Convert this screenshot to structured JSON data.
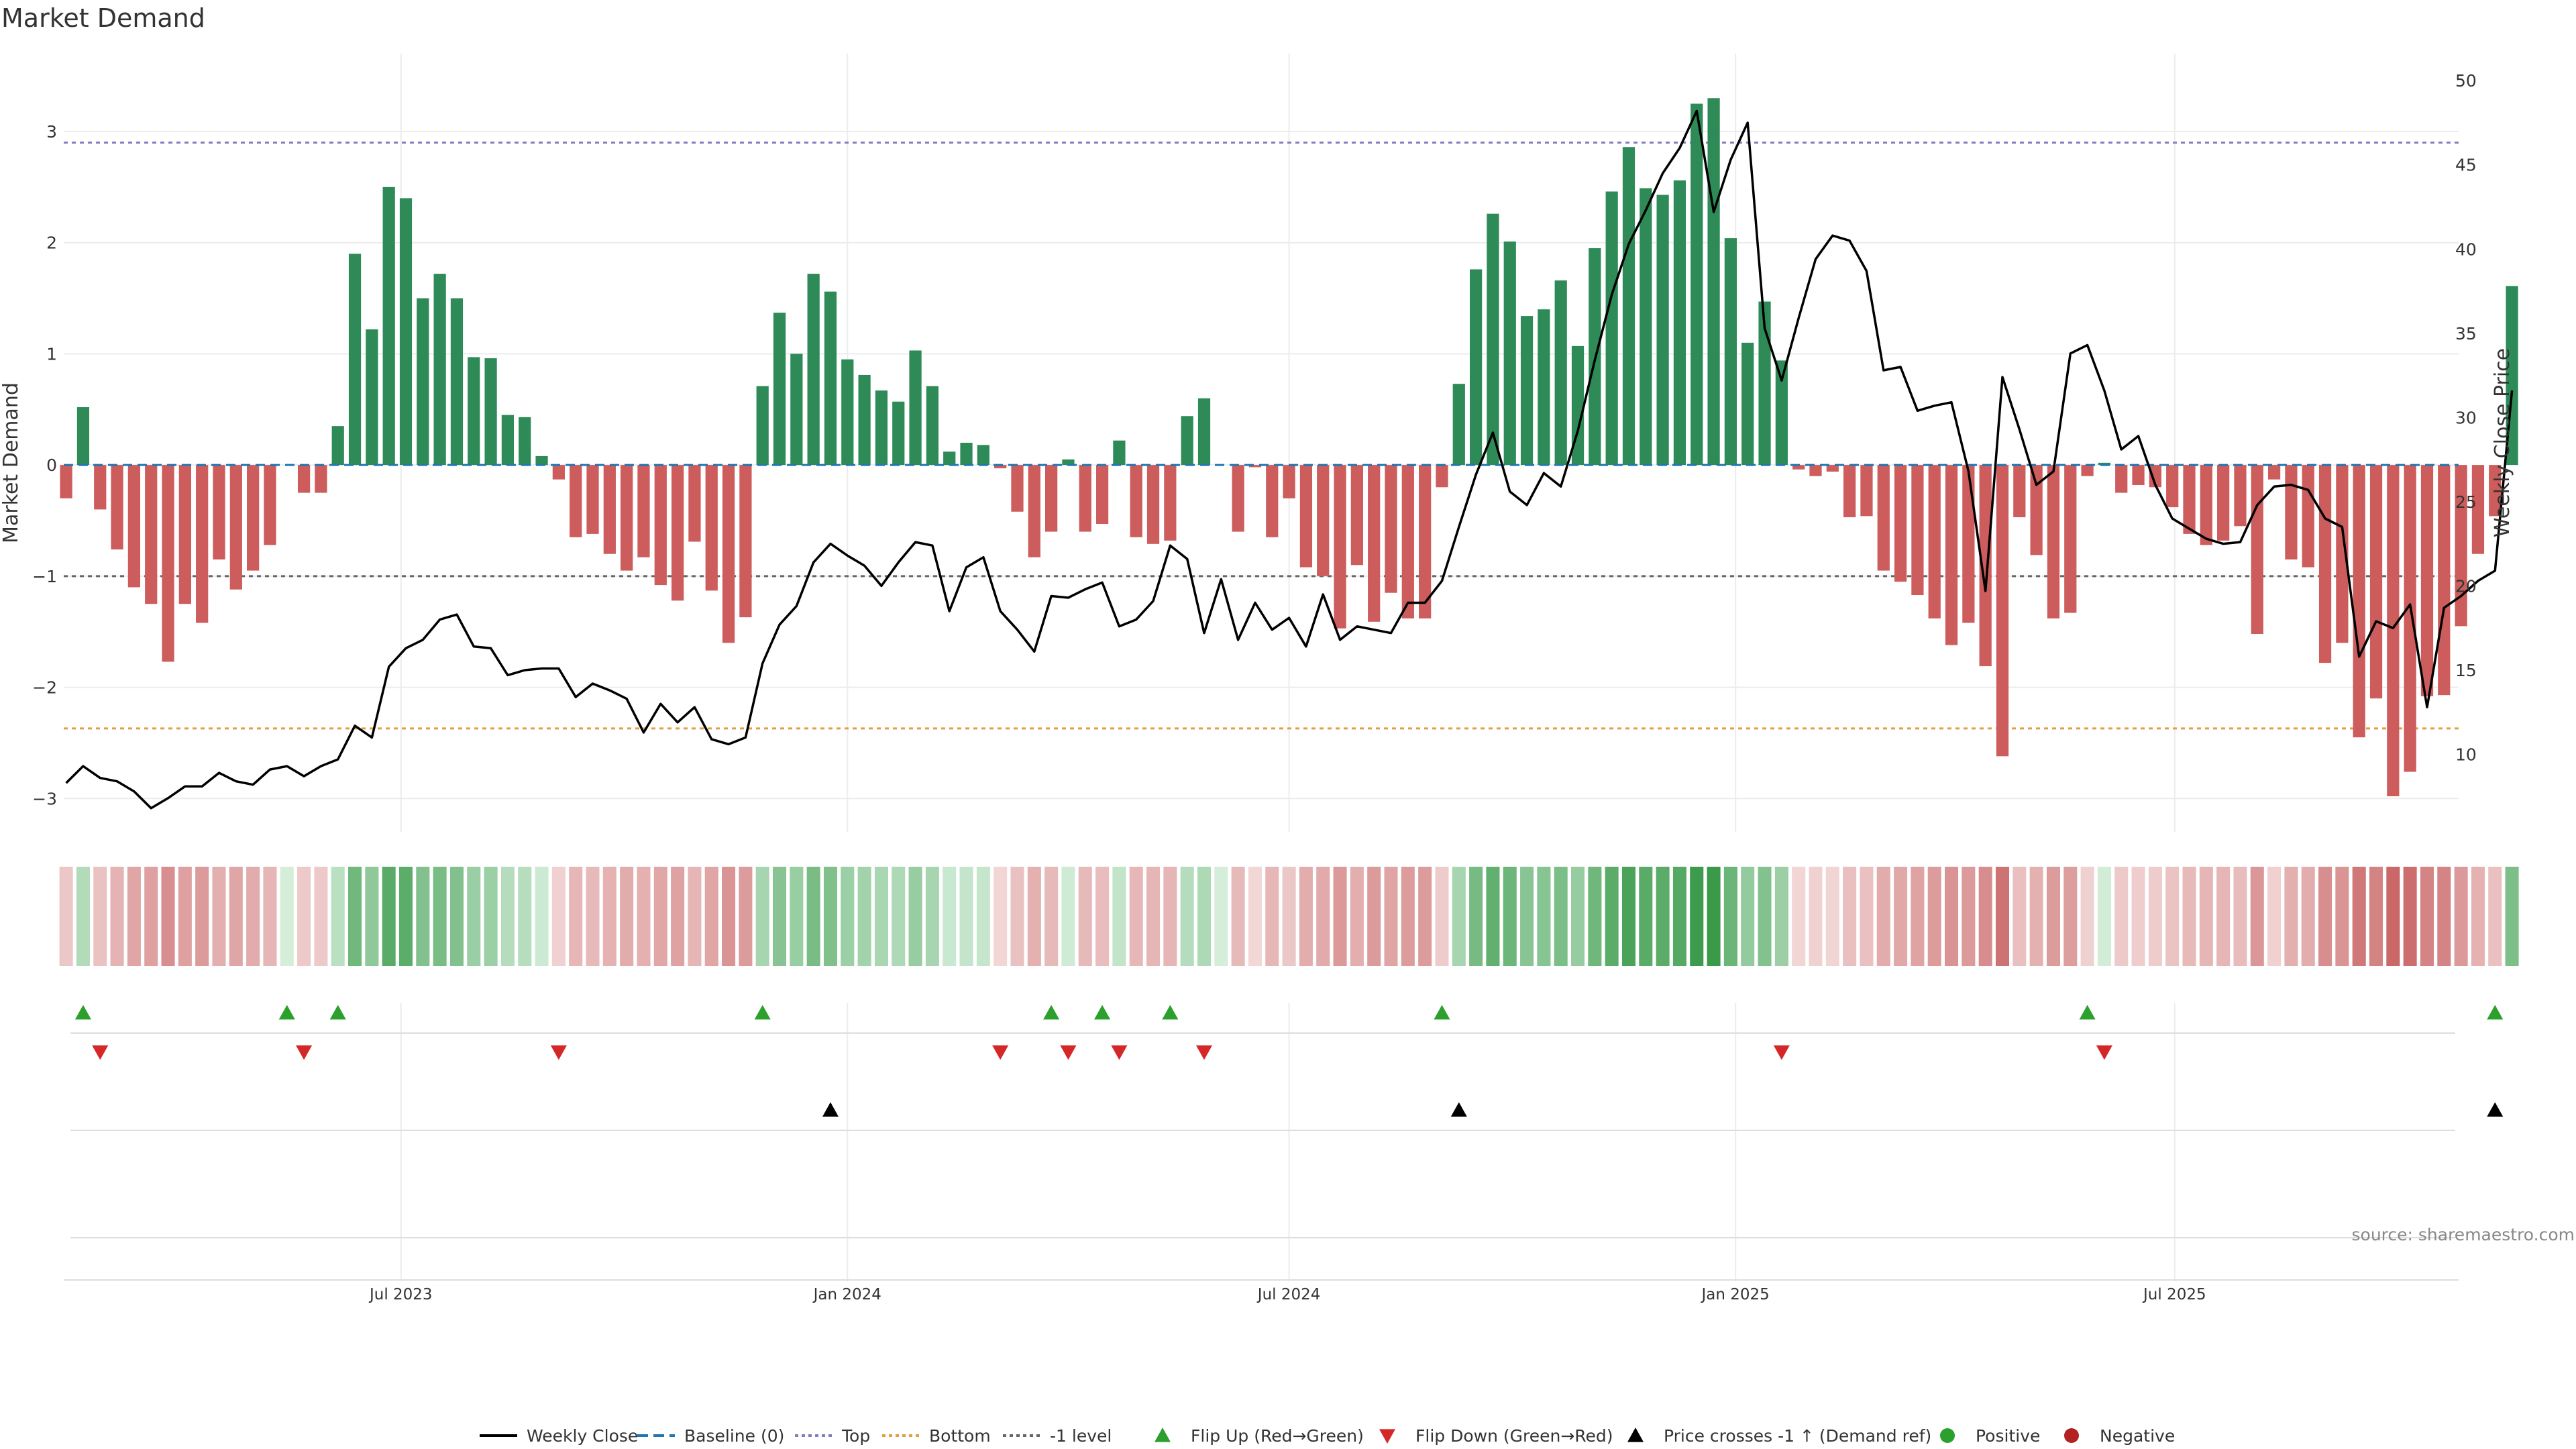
{
  "chart_data": {
    "type": "bar",
    "title": "Market Demand",
    "ylabel_left": "Market Demand",
    "ylabel_right": "Weekly Close Price",
    "source_text": "source: sharemaestro.com",
    "ylim_left": [
      -3.3,
      3.7
    ],
    "yticks_left": [
      {
        "v": 3,
        "label": "3"
      },
      {
        "v": 2,
        "label": "2"
      },
      {
        "v": 1,
        "label": "1"
      },
      {
        "v": 0,
        "label": "0"
      },
      {
        "v": -1,
        "label": "−1"
      },
      {
        "v": -2,
        "label": "−2"
      },
      {
        "v": -3,
        "label": "−3"
      }
    ],
    "ylim_right": [
      5.4,
      51.6
    ],
    "yticks_right": [
      {
        "v": 50,
        "label": "50"
      },
      {
        "v": 45,
        "label": "45"
      },
      {
        "v": 40,
        "label": "40"
      },
      {
        "v": 35,
        "label": "35"
      },
      {
        "v": 30,
        "label": "30"
      },
      {
        "v": 25,
        "label": "25"
      },
      {
        "v": 20,
        "label": "20"
      },
      {
        "v": 15,
        "label": "15"
      },
      {
        "v": 10,
        "label": "10"
      }
    ],
    "x_range": [
      "2023-02-12",
      "2025-10-26"
    ],
    "xticks": [
      {
        "date": "2023-07-01",
        "label": "Jul 2023"
      },
      {
        "date": "2024-01-01",
        "label": "Jan 2024"
      },
      {
        "date": "2024-07-01",
        "label": "Jul 2024"
      },
      {
        "date": "2025-01-01",
        "label": "Jan 2025"
      },
      {
        "date": "2025-07-01",
        "label": "Jul 2025"
      }
    ],
    "start_date": "2023-02-13",
    "reference_lines": {
      "top": 2.9,
      "bottom": -2.37,
      "minus_one": -1,
      "baseline": 0
    },
    "demand": [
      -0.3,
      0.52,
      -0.4,
      -0.76,
      -1.1,
      -1.25,
      -1.77,
      -1.25,
      -1.42,
      -0.85,
      -1.12,
      -0.95,
      -0.72,
      0.0,
      -0.25,
      -0.25,
      0.35,
      1.9,
      1.22,
      2.5,
      2.4,
      1.5,
      1.72,
      1.5,
      0.97,
      0.96,
      0.45,
      0.43,
      0.08,
      -0.13,
      -0.65,
      -0.62,
      -0.8,
      -0.95,
      -0.83,
      -1.08,
      -1.22,
      -0.69,
      -1.13,
      -1.6,
      -1.37,
      0.71,
      1.37,
      1.0,
      1.72,
      1.56,
      0.95,
      0.81,
      0.67,
      0.57,
      1.03,
      0.71,
      0.12,
      0.2,
      0.18,
      -0.03,
      -0.42,
      -0.83,
      -0.6,
      0.05,
      -0.6,
      -0.53,
      0.22,
      -0.65,
      -0.71,
      -0.68,
      0.44,
      0.6,
      0.0,
      -0.6,
      -0.02,
      -0.65,
      -0.3,
      -0.92,
      -1.0,
      -1.47,
      -0.9,
      -1.41,
      -1.15,
      -1.38,
      -1.38,
      -0.2,
      0.73,
      1.76,
      2.26,
      2.01,
      1.34,
      1.4,
      1.66,
      1.07,
      1.95,
      2.46,
      2.86,
      2.49,
      2.43,
      2.56,
      3.25,
      3.3,
      2.04,
      1.1,
      1.47,
      0.94,
      -0.04,
      -0.1,
      -0.06,
      -0.47,
      -0.46,
      -0.95,
      -1.05,
      -1.17,
      -1.38,
      -1.62,
      -1.42,
      -1.81,
      -2.62,
      -0.47,
      -0.81,
      -1.38,
      -1.33,
      -0.1,
      0.02,
      -0.25,
      -0.18,
      -0.2,
      -0.38,
      -0.62,
      -0.72,
      -0.68,
      -0.55,
      -1.52,
      -0.13,
      -0.85,
      -0.92,
      -1.78,
      -1.6,
      -2.45,
      -2.1,
      -2.98,
      -2.76,
      -2.08,
      -2.07,
      -1.45,
      -0.8,
      -0.46,
      1.61
    ],
    "weekly_close": [
      8.3,
      9.3,
      8.6,
      8.4,
      7.8,
      6.8,
      7.4,
      8.1,
      8.1,
      8.9,
      8.4,
      8.2,
      9.1,
      9.3,
      8.7,
      9.3,
      9.7,
      11.7,
      11.0,
      15.2,
      16.3,
      16.8,
      18.0,
      18.3,
      16.4,
      16.3,
      14.7,
      15.0,
      15.1,
      15.1,
      13.4,
      14.2,
      13.8,
      13.3,
      11.3,
      13.0,
      11.9,
      12.8,
      10.9,
      10.6,
      11.0,
      15.4,
      17.7,
      18.8,
      21.4,
      22.5,
      21.8,
      21.2,
      20.0,
      21.4,
      22.6,
      22.4,
      18.5,
      21.1,
      21.7,
      18.5,
      17.4,
      16.1,
      19.4,
      19.3,
      19.8,
      20.2,
      17.6,
      18.0,
      19.1,
      22.4,
      21.6,
      17.2,
      20.4,
      16.8,
      19.0,
      17.4,
      18.1,
      16.4,
      19.5,
      16.8,
      17.6,
      17.4,
      17.2,
      19.0,
      19.0,
      20.3,
      23.5,
      26.6,
      29.1,
      25.6,
      24.8,
      26.7,
      25.9,
      29.2,
      33.4,
      37.3,
      40.3,
      42.3,
      44.5,
      46.0,
      48.2,
      42.2,
      45.3,
      47.5,
      35.3,
      32.2,
      35.9,
      39.4,
      40.8,
      40.5,
      38.7,
      32.8,
      33.0,
      30.4,
      30.7,
      30.9,
      26.8,
      19.7,
      32.4,
      29.3,
      26.0,
      26.8,
      33.8,
      34.3,
      31.6,
      28.1,
      28.9,
      26.0,
      24.0,
      23.4,
      22.8,
      22.5,
      22.6,
      24.8,
      25.9,
      26.0,
      25.7,
      24.0,
      23.5,
      15.8,
      17.9,
      17.5,
      18.9,
      12.8,
      18.7,
      19.4,
      20.3,
      20.9,
      31.6
    ],
    "heatmap_note": "strip color intensity follows weekly demand sign and magnitude",
    "events": {
      "flip_up": [
        1,
        13,
        16,
        41,
        58,
        61,
        65,
        81,
        119,
        143
      ],
      "flip_down": [
        2,
        14,
        29,
        55,
        59,
        62,
        67,
        101,
        120
      ],
      "price_cross_up": [
        45,
        82,
        143
      ]
    },
    "colors": {
      "positive_bar": "#2e8b57",
      "negative_bar": "#cd5c5c",
      "price_line": "#000000",
      "baseline": "#1f77b4",
      "top_line": "#7f7fbf",
      "bottom_line": "#e0a040",
      "minus_one_line": "#666666",
      "flip_up": "#2ca02c",
      "flip_down": "#d62728",
      "price_cross": "#000000",
      "grid": "#ececec"
    },
    "legend": [
      {
        "label": "Weekly Close",
        "kind": "line",
        "color": "#000000"
      },
      {
        "label": "Baseline (0)",
        "kind": "dash",
        "color": "#1f77b4"
      },
      {
        "label": "Top",
        "kind": "dot",
        "color": "#7f7fbf"
      },
      {
        "label": "Bottom",
        "kind": "dot",
        "color": "#e0a040"
      },
      {
        "label": "-1 level",
        "kind": "dot",
        "color": "#666666"
      },
      {
        "label": "Flip Up (Red→Green)",
        "kind": "tri-up",
        "color": "#2ca02c"
      },
      {
        "label": "Flip Down (Green→Red)",
        "kind": "tri-down",
        "color": "#d62728"
      },
      {
        "label": "Price crosses -1 ↑ (Demand ref)",
        "kind": "tri-up",
        "color": "#000000"
      },
      {
        "label": "Positive",
        "kind": "dot-marker",
        "color": "#2ca02c"
      },
      {
        "label": "Negative",
        "kind": "dot-marker",
        "color": "#b22222"
      }
    ]
  }
}
